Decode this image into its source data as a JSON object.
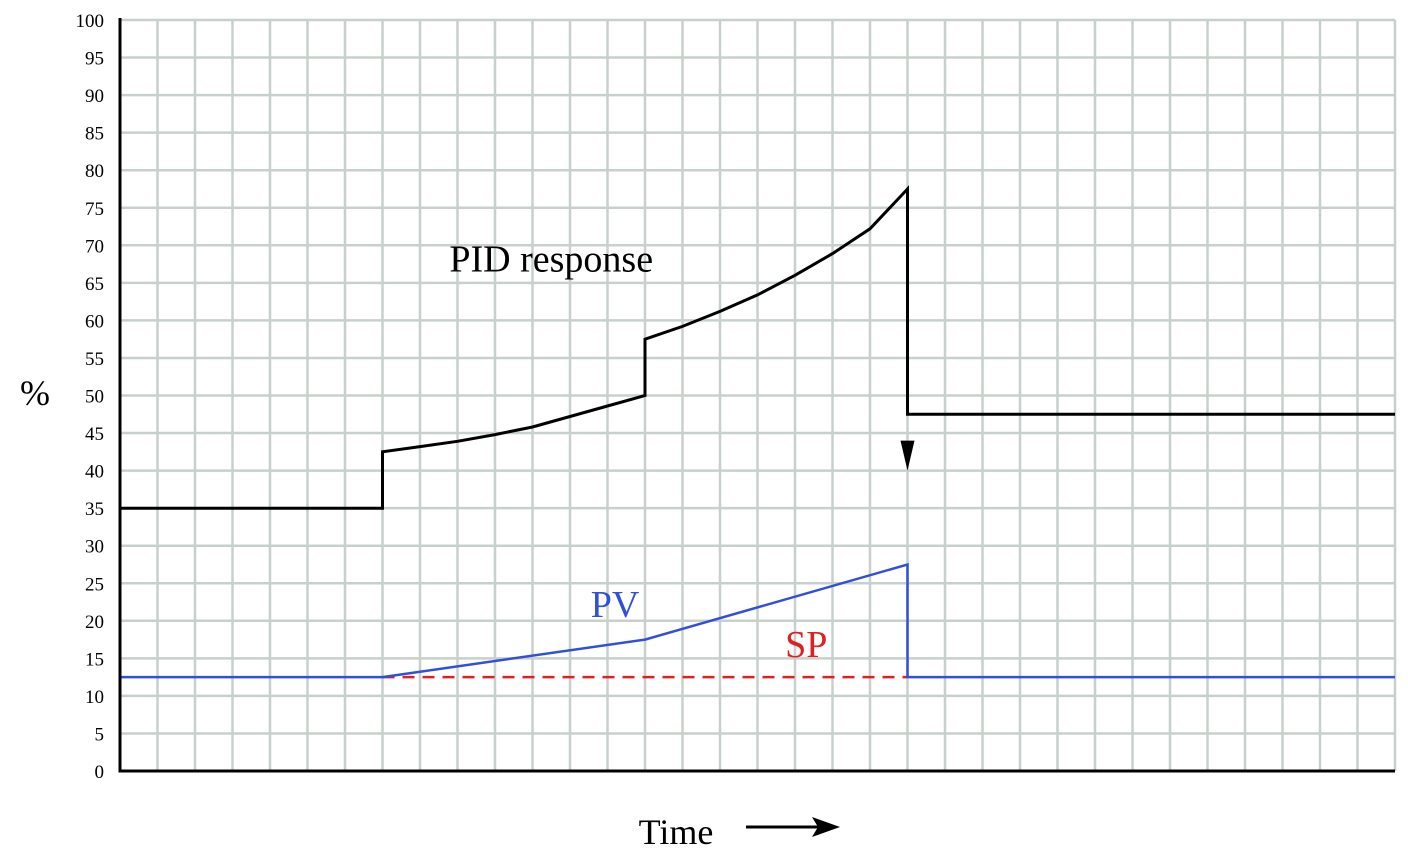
{
  "chart_data": {
    "type": "line",
    "ylabel": "%",
    "xlabel": "Time",
    "x_arrow": "time-arrow-icon",
    "ylim": [
      0,
      100
    ],
    "y_ticks": [
      0,
      5,
      10,
      15,
      20,
      25,
      30,
      35,
      40,
      45,
      50,
      55,
      60,
      65,
      70,
      75,
      80,
      85,
      90,
      95,
      100
    ],
    "xlim": [
      0,
      34
    ],
    "grid": true,
    "series": [
      {
        "name": "PID response",
        "color": "#000000",
        "points": [
          [
            0,
            35
          ],
          [
            7,
            35
          ],
          [
            7,
            42.5
          ],
          [
            8,
            43.2
          ],
          [
            9,
            43.9
          ],
          [
            10,
            44.8
          ],
          [
            11,
            45.8
          ],
          [
            12,
            47.2
          ],
          [
            13,
            48.6
          ],
          [
            14,
            50
          ],
          [
            14,
            57.5
          ],
          [
            15,
            59.2
          ],
          [
            16,
            61.2
          ],
          [
            17,
            63.4
          ],
          [
            18,
            66
          ],
          [
            19,
            68.9
          ],
          [
            20,
            72.2
          ],
          [
            21,
            77.5
          ],
          [
            21,
            47.5
          ],
          [
            34,
            47.5
          ]
        ]
      },
      {
        "name": "PV",
        "color": "#3050d8",
        "points": [
          [
            0,
            12.5
          ],
          [
            7,
            12.5
          ],
          [
            14,
            17.5
          ],
          [
            21,
            27.5
          ],
          [
            21,
            12.5
          ],
          [
            34,
            12.5
          ]
        ]
      },
      {
        "name": "SP",
        "color": "#e02020",
        "dashed": true,
        "points": [
          [
            7,
            12.5
          ],
          [
            21,
            12.5
          ]
        ]
      }
    ],
    "annotations": [
      {
        "text": "PID response",
        "x": 11.5,
        "y": 66.5,
        "color": "#000000"
      },
      {
        "text": "PV",
        "x": 13.2,
        "y": 20.5,
        "color": "#3050d8"
      },
      {
        "text": "SP",
        "x": 18.3,
        "y": 15.2,
        "color": "#e02020"
      }
    ],
    "step_arrow": {
      "x": 21,
      "from": 77.5,
      "to": 40
    }
  }
}
